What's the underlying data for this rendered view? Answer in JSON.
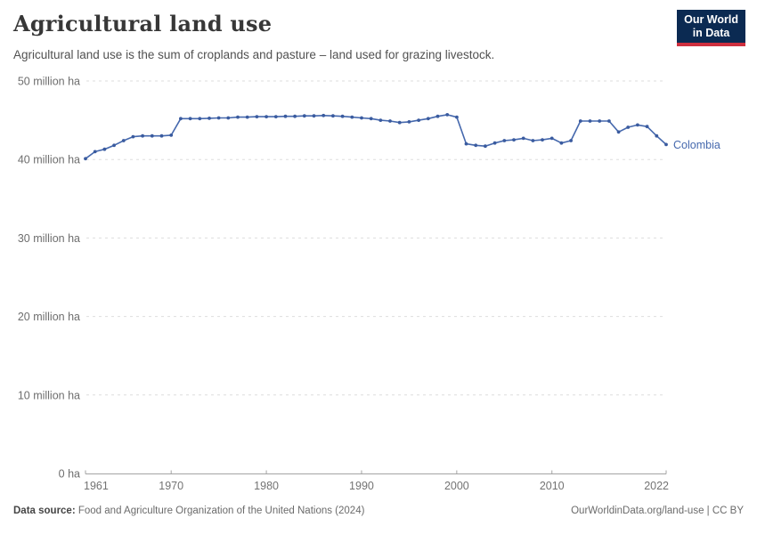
{
  "header": {
    "title": "Agricultural land use",
    "subtitle": "Agricultural land use is the sum of croplands and pasture – land used for grazing livestock.",
    "logo": {
      "line1": "Our World",
      "line2": "in Data"
    }
  },
  "chart_data": {
    "type": "line",
    "title": "Agricultural land use",
    "unit": "million ha",
    "grid": true,
    "legend_position": "end-of-line",
    "xlim": [
      1961,
      2022
    ],
    "ylim": [
      0,
      50
    ],
    "yticks": [
      {
        "value": 0,
        "label": "0 ha"
      },
      {
        "value": 10,
        "label": "10 million ha"
      },
      {
        "value": 20,
        "label": "20 million ha"
      },
      {
        "value": 30,
        "label": "30 million ha"
      },
      {
        "value": 40,
        "label": "40 million ha"
      },
      {
        "value": 50,
        "label": "50 million ha"
      }
    ],
    "xticks": [
      {
        "value": 1961,
        "label": "1961",
        "anchor": "start"
      },
      {
        "value": 1970,
        "label": "1970",
        "anchor": "middle"
      },
      {
        "value": 1980,
        "label": "1980",
        "anchor": "middle"
      },
      {
        "value": 1990,
        "label": "1990",
        "anchor": "middle"
      },
      {
        "value": 2000,
        "label": "2000",
        "anchor": "middle"
      },
      {
        "value": 2010,
        "label": "2010",
        "anchor": "middle"
      },
      {
        "value": 2022,
        "label": "2022",
        "anchor": "end"
      }
    ],
    "x": [
      1961,
      1962,
      1963,
      1964,
      1965,
      1966,
      1967,
      1968,
      1969,
      1970,
      1971,
      1972,
      1973,
      1974,
      1975,
      1976,
      1977,
      1978,
      1979,
      1980,
      1981,
      1982,
      1983,
      1984,
      1985,
      1986,
      1987,
      1988,
      1989,
      1990,
      1991,
      1992,
      1993,
      1994,
      1995,
      1996,
      1997,
      1998,
      1999,
      2000,
      2001,
      2002,
      2003,
      2004,
      2005,
      2006,
      2007,
      2008,
      2009,
      2010,
      2011,
      2012,
      2013,
      2014,
      2015,
      2016,
      2017,
      2018,
      2019,
      2020,
      2021,
      2022
    ],
    "series": [
      {
        "name": "Colombia",
        "color": "#4568ad",
        "values": [
          40.1,
          41.0,
          41.3,
          41.8,
          42.4,
          42.9,
          43.0,
          43.0,
          43.0,
          43.1,
          45.2,
          45.2,
          45.2,
          45.25,
          45.3,
          45.3,
          45.4,
          45.4,
          45.45,
          45.45,
          45.45,
          45.5,
          45.5,
          45.55,
          45.55,
          45.6,
          45.55,
          45.5,
          45.4,
          45.3,
          45.2,
          45.0,
          44.9,
          44.7,
          44.8,
          45.0,
          45.2,
          45.5,
          45.7,
          45.4,
          42.0,
          41.8,
          41.7,
          42.1,
          42.4,
          42.5,
          42.7,
          42.4,
          42.5,
          42.7,
          42.1,
          42.4,
          44.9,
          44.9,
          44.9,
          44.9,
          43.5,
          44.1,
          44.4,
          44.2,
          43.0,
          41.9
        ]
      }
    ]
  },
  "footer": {
    "source_label": "Data source:",
    "source_text": " Food and Agriculture Organization of the United Nations (2024)",
    "link_text": "OurWorldinData.org/land-use | CC BY"
  },
  "colors": {
    "line": "#4568ad",
    "dot": "#3a5b9f",
    "entity_label": "#4568ad",
    "gridline": "#dedede",
    "axis_line": "#a3a3a3",
    "axis_text": "#6e6e6e",
    "xaxis_text": "#737373",
    "logo_bg": "#0b2a52",
    "logo_red": "#ce2f3e"
  }
}
